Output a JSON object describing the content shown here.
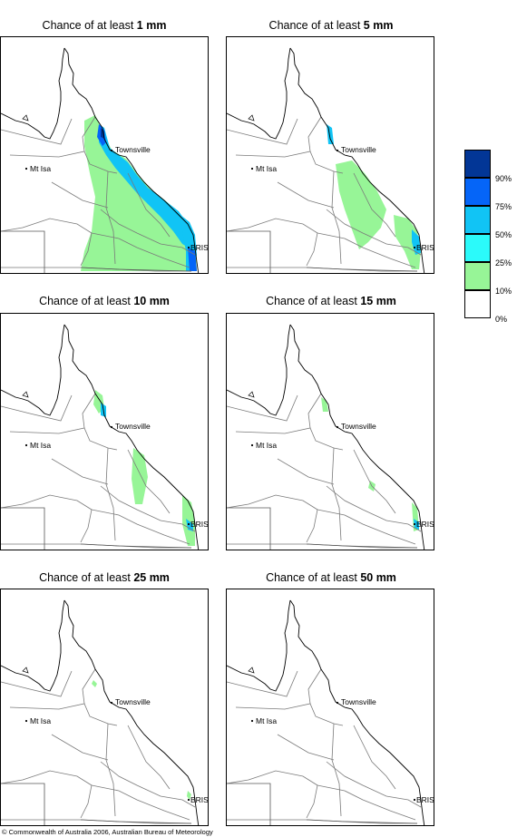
{
  "panels": [
    {
      "title_prefix": "Chance of at least ",
      "threshold": "1 mm",
      "level": 1
    },
    {
      "title_prefix": "Chance of at least ",
      "threshold": "5 mm",
      "level": 2
    },
    {
      "title_prefix": "Chance of at least ",
      "threshold": "10 mm",
      "level": 3
    },
    {
      "title_prefix": "Chance of at least ",
      "threshold": "15 mm",
      "level": 4
    },
    {
      "title_prefix": "Chance of at least ",
      "threshold": "25 mm",
      "level": 5
    },
    {
      "title_prefix": "Chance of at least ",
      "threshold": "50 mm",
      "level": 6
    }
  ],
  "places": {
    "townsville": "Townsville",
    "mt_isa": "Mt Isa",
    "bris": "BRIS"
  },
  "legend": {
    "colors": [
      "#023696",
      "#0565f8",
      "#11c4f5",
      "#2bfafa",
      "#97f597",
      "#ffffff"
    ],
    "labels": [
      "90%",
      "75%",
      "50%",
      "25%",
      "10%",
      "0%"
    ]
  },
  "copyright": "© Commonwealth of Australia 2006, Australian Bureau of Meteorology"
}
